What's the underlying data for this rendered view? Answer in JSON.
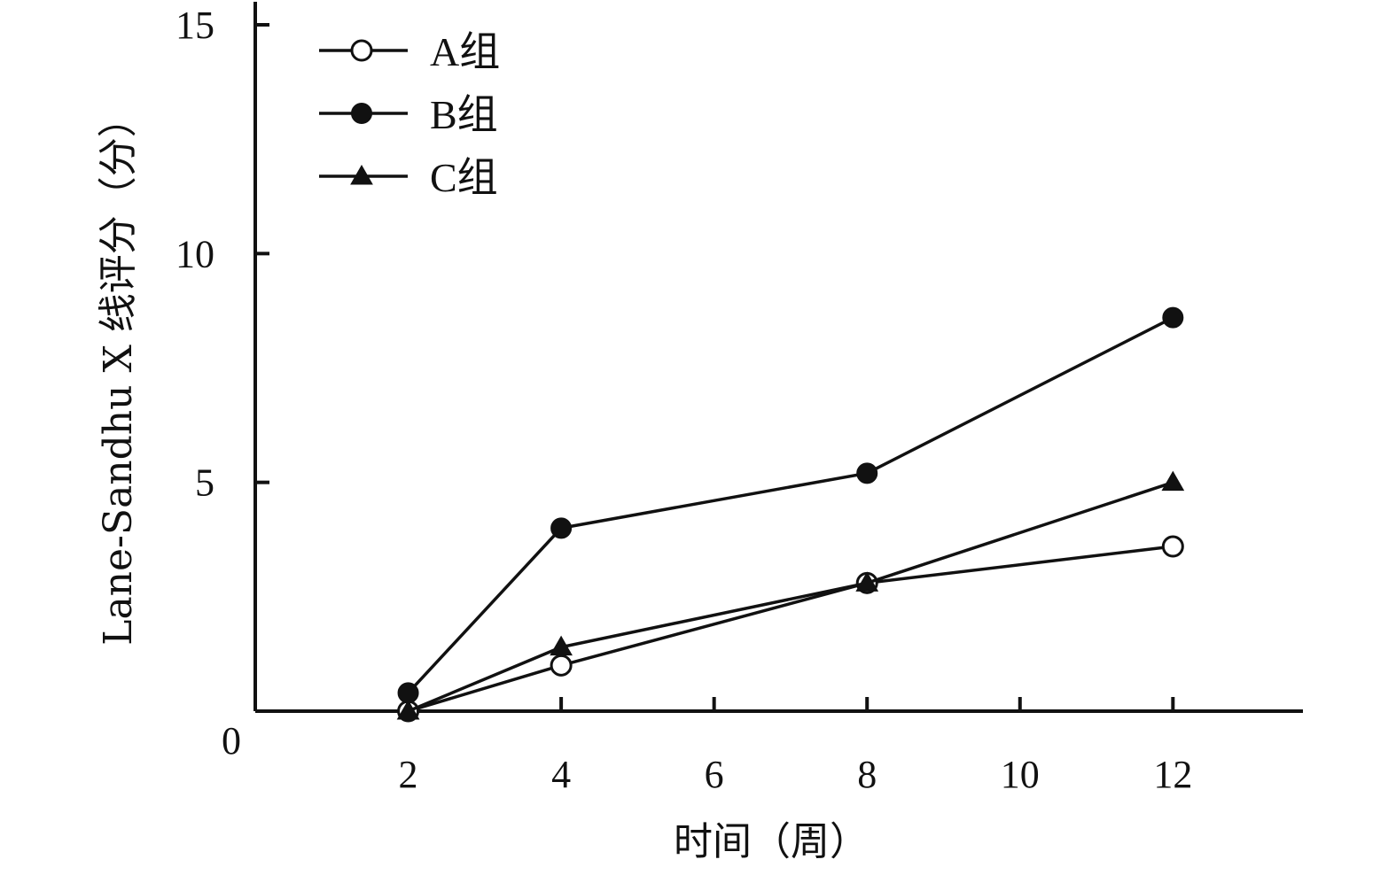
{
  "chart_data": {
    "type": "line",
    "title": "",
    "xlabel": "时间（周）",
    "ylabel": "Lane-Sandhu X 线评分（分）",
    "x": [
      2,
      4,
      8,
      12
    ],
    "xlim": [
      0,
      13.7
    ],
    "ylim": [
      0,
      15
    ],
    "xticks": [
      2,
      4,
      6,
      8,
      10,
      12
    ],
    "yticks": [
      0,
      5,
      10,
      15
    ],
    "grid": false,
    "legend_position": "top-left",
    "series": [
      {
        "name": "A组",
        "marker": "open-circle",
        "values": [
          0,
          1.0,
          2.8,
          3.6
        ]
      },
      {
        "name": "B组",
        "marker": "filled-circle",
        "values": [
          0.4,
          4.0,
          5.2,
          8.6
        ]
      },
      {
        "name": "C组",
        "marker": "filled-triangle",
        "values": [
          0,
          1.4,
          2.8,
          5.0
        ]
      }
    ],
    "colors": {
      "line": "#111111",
      "background": "#ffffff"
    }
  }
}
